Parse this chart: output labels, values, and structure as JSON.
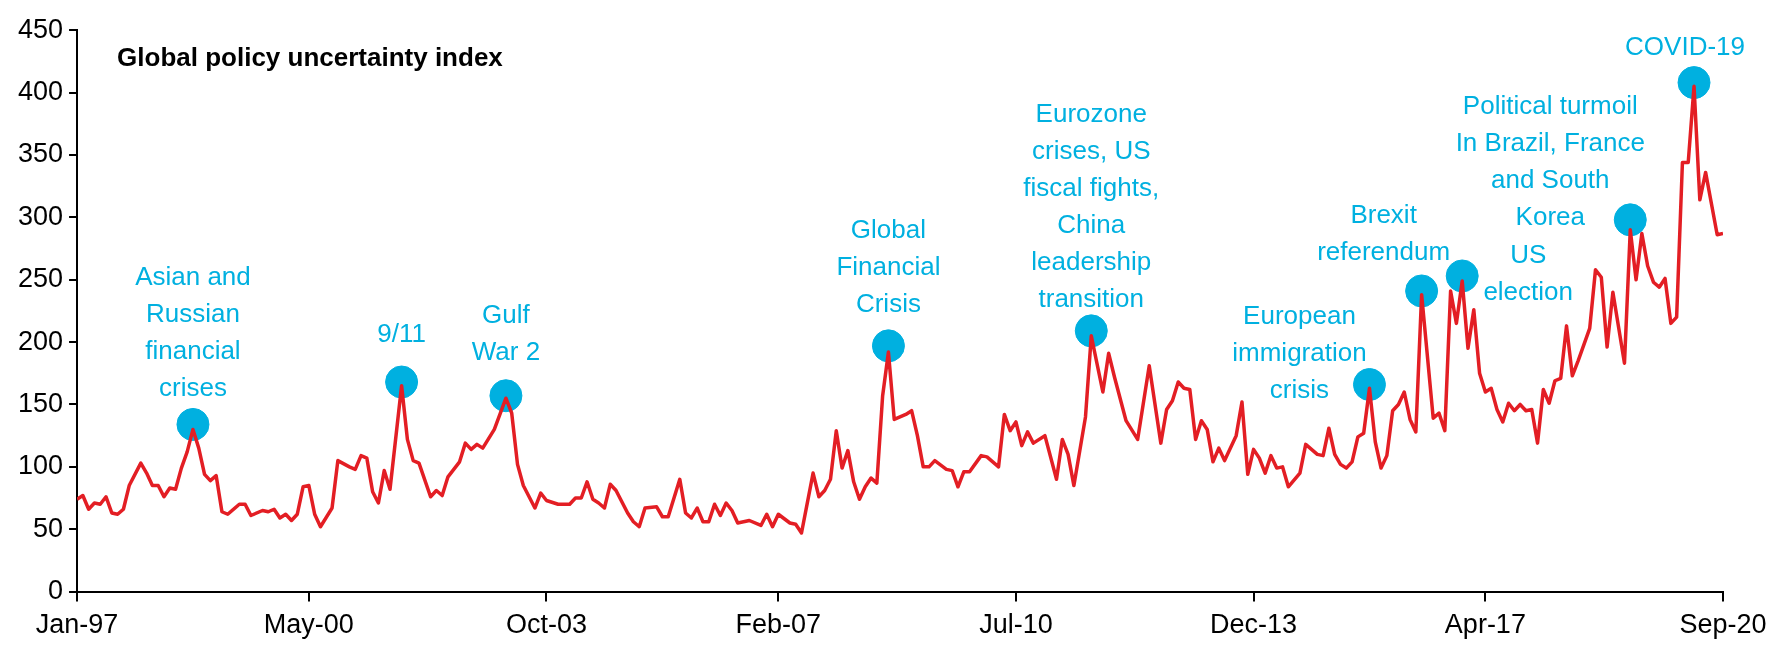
{
  "chart_data": {
    "type": "line",
    "title": "Global policy uncertainty index",
    "marker": "none",
    "legend": false,
    "x": [
      "1997-01",
      "1997-02",
      "1997-03",
      "1997-04",
      "1997-05",
      "1997-06",
      "1997-07",
      "1997-08",
      "1997-09",
      "1997-10",
      "1997-12",
      "1998-01",
      "1998-02",
      "1998-03",
      "1998-04",
      "1998-05",
      "1998-06",
      "1998-07",
      "1998-08",
      "1998-09",
      "1998-10",
      "1998-11",
      "1998-12",
      "1999-01",
      "1999-02",
      "1999-03",
      "1999-05",
      "1999-06",
      "1999-07",
      "1999-09",
      "1999-10",
      "1999-11",
      "1999-12",
      "2000-01",
      "2000-02",
      "2000-03",
      "2000-04",
      "2000-05",
      "2000-06",
      "2000-07",
      "2000-09",
      "2000-10",
      "2000-12",
      "2001-01",
      "2001-02",
      "2001-03",
      "2001-04",
      "2001-05",
      "2001-06",
      "2001-07",
      "2001-09",
      "2001-10",
      "2001-11",
      "2001-12",
      "2002-02",
      "2002-03",
      "2002-04",
      "2002-05",
      "2002-07",
      "2002-08",
      "2002-09",
      "2002-10",
      "2002-11",
      "2003-01",
      "2003-03",
      "2003-04",
      "2003-05",
      "2003-06",
      "2003-08",
      "2003-09",
      "2003-10",
      "2003-12",
      "2004-02",
      "2004-03",
      "2004-04",
      "2004-05",
      "2004-06",
      "2004-07",
      "2004-08",
      "2004-09",
      "2004-10",
      "2004-12",
      "2005-01",
      "2005-02",
      "2005-03",
      "2005-05",
      "2005-06",
      "2005-07",
      "2005-09",
      "2005-10",
      "2005-11",
      "2005-12",
      "2006-01",
      "2006-02",
      "2006-03",
      "2006-04",
      "2006-05",
      "2006-06",
      "2006-07",
      "2006-09",
      "2006-11",
      "2006-12",
      "2007-01",
      "2007-02",
      "2007-04",
      "2007-05",
      "2007-06",
      "2007-08",
      "2007-09",
      "2007-10",
      "2007-11",
      "2007-12",
      "2008-01",
      "2008-02",
      "2008-03",
      "2008-04",
      "2008-05",
      "2008-06",
      "2008-07",
      "2008-08",
      "2008-09",
      "2008-10",
      "2008-12",
      "2009-01",
      "2009-02",
      "2009-03",
      "2009-04",
      "2009-05",
      "2009-07",
      "2009-08",
      "2009-09",
      "2009-10",
      "2009-11",
      "2010-01",
      "2010-02",
      "2010-04",
      "2010-05",
      "2010-06",
      "2010-07",
      "2010-08",
      "2010-09",
      "2010-10",
      "2010-12",
      "2011-02",
      "2011-03",
      "2011-04",
      "2011-05",
      "2011-07",
      "2011-08",
      "2011-10",
      "2011-11",
      "2011-12",
      "2012-02",
      "2012-04",
      "2012-06",
      "2012-08",
      "2012-09",
      "2012-10",
      "2012-11",
      "2012-12",
      "2013-01",
      "2013-02",
      "2013-03",
      "2013-04",
      "2013-05",
      "2013-06",
      "2013-07",
      "2013-09",
      "2013-10",
      "2013-11",
      "2013-12",
      "2014-01",
      "2014-02",
      "2014-03",
      "2014-04",
      "2014-05",
      "2014-06",
      "2014-08",
      "2014-09",
      "2014-11",
      "2014-12",
      "2015-01",
      "2015-02",
      "2015-03",
      "2015-04",
      "2015-05",
      "2015-06",
      "2015-07",
      "2015-08",
      "2015-09",
      "2015-10",
      "2015-11",
      "2015-12",
      "2016-01",
      "2016-02",
      "2016-03",
      "2016-04",
      "2016-05",
      "2016-07",
      "2016-08",
      "2016-09",
      "2016-10",
      "2016-11",
      "2016-12",
      "2017-01",
      "2017-02",
      "2017-03",
      "2017-04",
      "2017-05",
      "2017-06",
      "2017-07",
      "2017-08",
      "2017-09",
      "2017-10",
      "2017-11",
      "2017-12",
      "2018-01",
      "2018-02",
      "2018-03",
      "2018-04",
      "2018-05",
      "2018-06",
      "2018-07",
      "2018-08",
      "2018-10",
      "2018-11",
      "2018-12",
      "2019-01",
      "2019-02",
      "2019-04",
      "2019-05",
      "2019-06",
      "2019-07",
      "2019-08",
      "2019-09",
      "2019-10",
      "2019-11",
      "2019-12",
      "2020-01",
      "2020-02",
      "2020-03",
      "2020-04",
      "2020-05",
      "2020-06",
      "2020-08",
      "2020-09"
    ],
    "series": [
      {
        "color": "#e31e24",
        "values": [
          74,
          77,
          66,
          71,
          70,
          76,
          63,
          62,
          66,
          85,
          103,
          95,
          85,
          85,
          76,
          83,
          82,
          99,
          112,
          130,
          115,
          94,
          89,
          93,
          64,
          62,
          70,
          70,
          61,
          65,
          64,
          66,
          59,
          62,
          57,
          62,
          84,
          85,
          62,
          52,
          67,
          105,
          100,
          98,
          109,
          107,
          80,
          71,
          97,
          82,
          165,
          122,
          105,
          103,
          76,
          81,
          77,
          92,
          104,
          119,
          114,
          118,
          115,
          130,
          155,
          143,
          102,
          85,
          67,
          79,
          73,
          70,
          70,
          75,
          75,
          88,
          74,
          71,
          67,
          86,
          81,
          63,
          56,
          52,
          67,
          68,
          60,
          60,
          90,
          63,
          59,
          67,
          56,
          56,
          70,
          61,
          71,
          65,
          55,
          57,
          53,
          62,
          52,
          62,
          55,
          54,
          47,
          95,
          76,
          81,
          90,
          129,
          99,
          113,
          88,
          74,
          84,
          91,
          87,
          157,
          192,
          138,
          142,
          145,
          125,
          100,
          100,
          105,
          98,
          97,
          84,
          96,
          96,
          109,
          108,
          100,
          142,
          129,
          136,
          117,
          128,
          119,
          125,
          90,
          122,
          110,
          85,
          140,
          205,
          160,
          191,
          172,
          137,
          122,
          181,
          119,
          146,
          153,
          168,
          163,
          162,
          122,
          137,
          130,
          104,
          115,
          105,
          125,
          152,
          94,
          114,
          107,
          95,
          109,
          99,
          100,
          84,
          95,
          118,
          110,
          109,
          131,
          110,
          102,
          99,
          104,
          124,
          127,
          163,
          120,
          99,
          109,
          145,
          150,
          160,
          138,
          128,
          238,
          139,
          143,
          129,
          241,
          215,
          249,
          195,
          226,
          175,
          160,
          163,
          146,
          136,
          151,
          145,
          150,
          145,
          146,
          119,
          162,
          151,
          169,
          171,
          213,
          173,
          185,
          211,
          258,
          252,
          196,
          240,
          183,
          290,
          250,
          287,
          261,
          248,
          244,
          251,
          215,
          220,
          344,
          344,
          405,
          314,
          336,
          286,
          287
        ]
      },
      {
        "type": "scatter",
        "marker": "circle",
        "color": "#00b0e0",
        "x": [
          "1998-09",
          "2001-09",
          "2003-03",
          "2008-09",
          "2011-08",
          "2015-08",
          "2016-05",
          "2016-12",
          "2019-05",
          "2020-04"
        ],
        "values": [
          134,
          168,
          157,
          197,
          209,
          166,
          241,
          253,
          298,
          408
        ]
      }
    ],
    "xlim": [
      "1997-01",
      "2020-09"
    ],
    "xticks": [
      {
        "value": "1997-01",
        "label": "Jan-97"
      },
      {
        "value": "2000-05",
        "label": "May-00"
      },
      {
        "value": "2003-10",
        "label": "Oct-03"
      },
      {
        "value": "2007-02",
        "label": "Feb-07"
      },
      {
        "value": "2010-07",
        "label": "Jul-10"
      },
      {
        "value": "2013-12",
        "label": "Dec-13"
      },
      {
        "value": "2017-04",
        "label": "Apr-17"
      },
      {
        "value": "2020-09",
        "label": "Sep-20"
      }
    ],
    "ylim": [
      0,
      450
    ],
    "yticks": [
      0,
      50,
      100,
      150,
      200,
      250,
      300,
      350,
      400,
      450
    ],
    "annotations": [
      {
        "text": "Asian and\nRussian\nfinancial\ncrises",
        "x": "1998-09",
        "y": 134
      },
      {
        "text": "9/11",
        "x": "2001-09",
        "y": 168
      },
      {
        "text": "Gulf\nWar 2",
        "x": "2003-03",
        "y": 157
      },
      {
        "text": "Global\nFinancial\nCrisis",
        "x": "2008-09",
        "y": 197
      },
      {
        "text": "Eurozone\ncrises, US\nfiscal fights,\nChina\nleadership\ntransition",
        "x": "2011-08",
        "y": 209
      },
      {
        "text": "European\nimmigration\ncrisis",
        "x": "2015-08",
        "y": 166
      },
      {
        "text": "Brexit\nreferendum",
        "x": "2016-05",
        "y": 241
      },
      {
        "text": "US\nelection",
        "x": "2016-12",
        "y": 253
      },
      {
        "text": "Political turmoil\nIn Brazil, France\nand South\nKorea",
        "x": "2019-05",
        "y": 298
      },
      {
        "text": "COVID-19",
        "x": "2020-04",
        "y": 408
      }
    ]
  }
}
